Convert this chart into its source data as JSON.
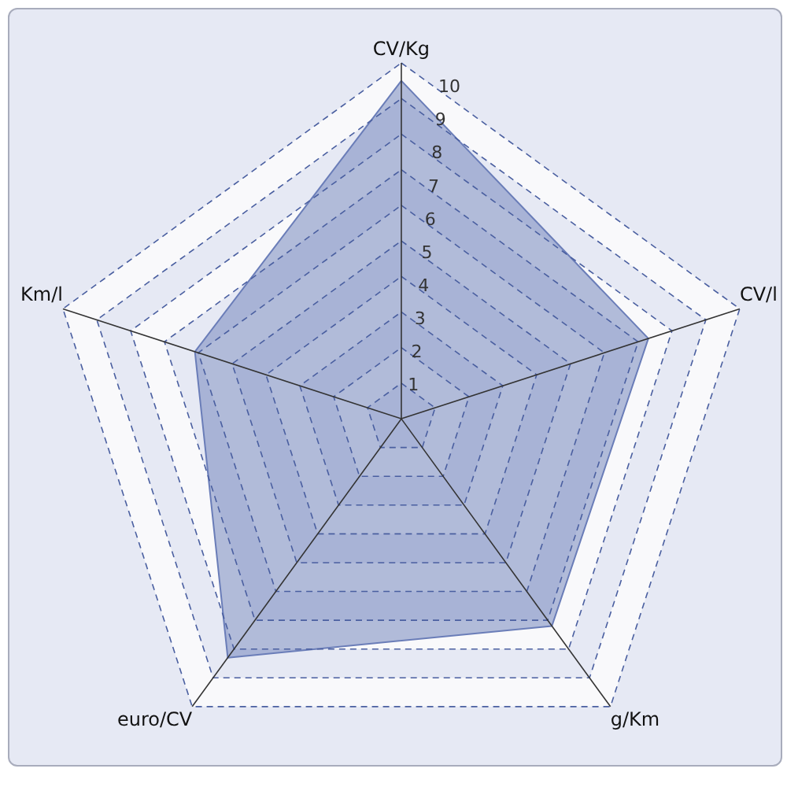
{
  "chart_data": {
    "type": "radar",
    "categories": [
      "CV/Kg",
      "CV/l",
      "g/Km",
      "euro/CV",
      "Km/l"
    ],
    "series": [
      {
        "color": "#6a7db8",
        "values": [
          9.5,
          7.3,
          7.2,
          8.3,
          6.1
        ]
      }
    ],
    "ylim": [
      0,
      10
    ],
    "yticks": [
      1,
      2,
      3,
      4,
      5,
      6,
      7,
      8,
      9,
      10
    ],
    "grid": true,
    "marker": "none",
    "line_style": "solid"
  }
}
